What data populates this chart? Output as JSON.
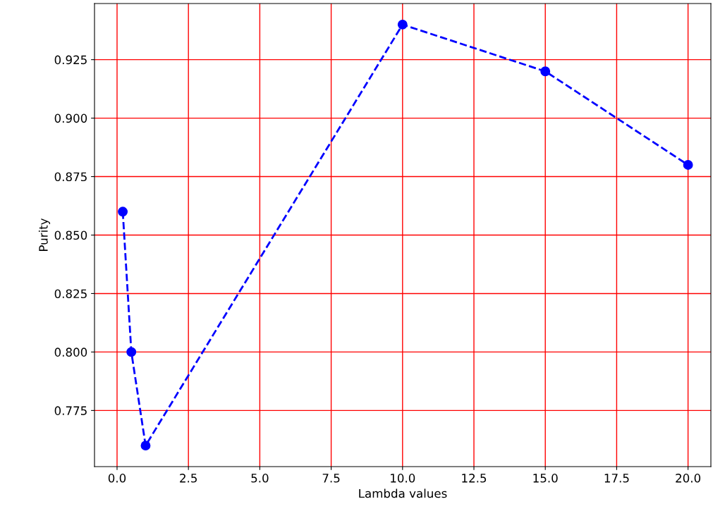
{
  "chart_data": {
    "type": "line",
    "xlabel": "Lambda values",
    "ylabel": "Purity",
    "x": [
      0.2,
      0.5,
      1,
      10,
      15,
      20
    ],
    "series": [
      {
        "color": "#0000ff",
        "values": [
          0.86,
          0.8,
          0.76,
          0.94,
          0.92,
          0.88
        ]
      }
    ],
    "marker": "circle",
    "line_style": "dashed",
    "grid": true,
    "xlim": [
      -0.79,
      20.8
    ],
    "ylim": [
      0.751,
      0.949
    ],
    "xticks": [
      {
        "value": 0,
        "label": "0.0"
      },
      2.5,
      {
        "value": 5,
        "label": "5.0"
      },
      7.5,
      {
        "value": 10,
        "label": "10.0"
      },
      12.5,
      {
        "value": 15,
        "label": "15.0"
      },
      17.5,
      {
        "value": 20,
        "label": "20.0"
      }
    ],
    "yticks": [
      {
        "value": 0.775,
        "label": "0.775"
      },
      {
        "value": 0.8,
        "label": "0.800"
      },
      {
        "value": 0.825,
        "label": "0.825"
      },
      {
        "value": 0.85,
        "label": "0.850"
      },
      {
        "value": 0.875,
        "label": "0.875"
      },
      {
        "value": 0.9,
        "label": "0.900"
      },
      {
        "value": 0.925,
        "label": "0.925"
      }
    ]
  }
}
